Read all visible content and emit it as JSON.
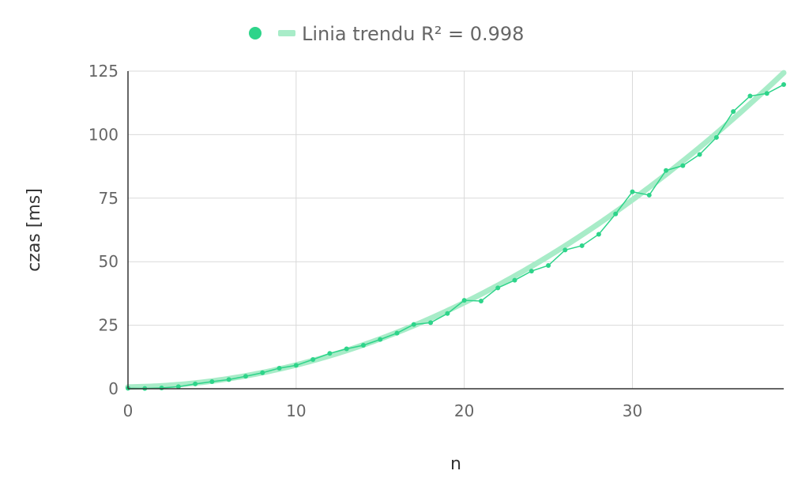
{
  "chart_data": {
    "type": "line",
    "xlabel": "n",
    "ylabel": "czas [ms]",
    "xlim": [
      0,
      39
    ],
    "ylim": [
      0,
      125
    ],
    "x_ticks": [
      0,
      10,
      20,
      30
    ],
    "y_ticks": [
      0,
      25,
      50,
      75,
      100,
      125
    ],
    "grid": true,
    "legend_position": "top",
    "legend": {
      "trend_label": "Linia trendu R² = 0.998"
    },
    "colors": {
      "data": "#2ed48a",
      "trend": "#a8ecc8",
      "grid": "#d9d9d9",
      "axis": "#333333"
    },
    "series": [
      {
        "x": [
          0,
          1,
          2,
          3,
          4,
          5,
          6,
          7,
          8,
          9,
          10,
          11,
          12,
          13,
          14,
          15,
          16,
          17,
          18,
          19,
          20,
          21,
          22,
          23,
          24,
          25,
          26,
          27,
          28,
          29,
          30,
          31,
          32,
          33,
          34,
          35,
          36,
          37,
          38,
          39
        ],
        "values": [
          0.2,
          0.1,
          0.3,
          0.8,
          1.9,
          2.8,
          3.6,
          4.9,
          6.3,
          8.1,
          9.2,
          11.5,
          13.9,
          15.7,
          17.1,
          19.4,
          21.9,
          25.3,
          26.0,
          29.6,
          34.8,
          34.5,
          39.7,
          42.7,
          46.3,
          48.5,
          54.6,
          56.3,
          60.8,
          68.8,
          77.5,
          76.2,
          85.9,
          87.8,
          92.2,
          98.9,
          109.1,
          115.2,
          116.2,
          119.7
        ]
      }
    ],
    "trendline": {
      "type": "quadratic",
      "a": 0.0795,
      "b": 0.07,
      "c": 0.7,
      "r2": 0.998
    }
  }
}
